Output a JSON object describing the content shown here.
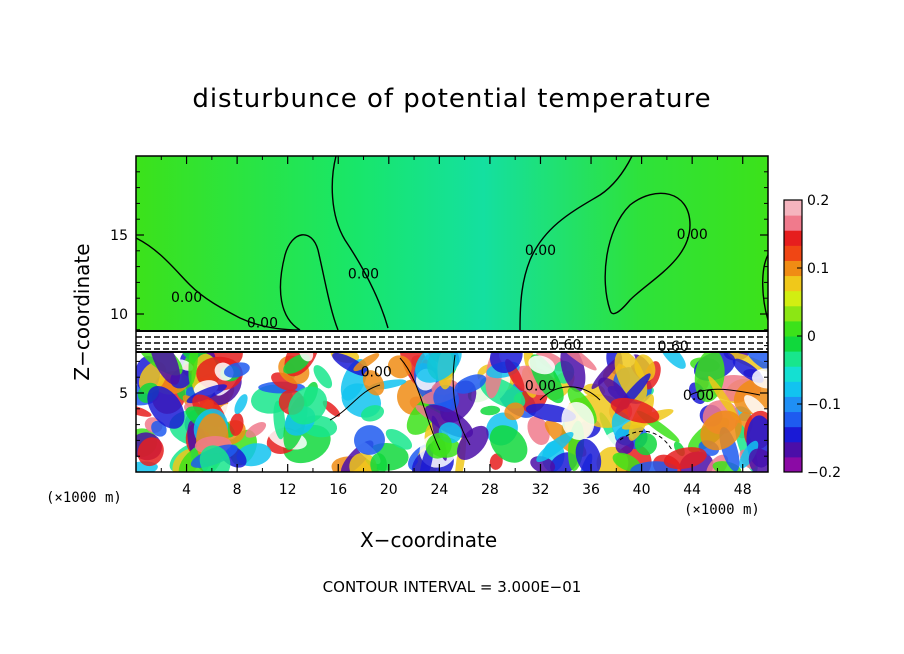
{
  "chart_data": {
    "type": "heatmap",
    "title": "disturbunce of potential temperature",
    "xlabel": "X−coordinate",
    "ylabel": "Z−coordinate",
    "x_unit": "(×1000 m)",
    "xlim": [
      0,
      50
    ],
    "ylim": [
      0,
      20
    ],
    "x_ticks": [
      4,
      8,
      12,
      16,
      20,
      24,
      28,
      32,
      36,
      40,
      44,
      48
    ],
    "x_tick_labels": [
      "4",
      "8",
      "12",
      "16",
      "20",
      "24",
      "28",
      "32",
      "36",
      "40",
      "44",
      "48"
    ],
    "y_ticks": [
      5,
      10,
      15
    ],
    "y_tick_labels": [
      "5",
      "10",
      "15"
    ],
    "colorbar": {
      "ticks": [
        0.2,
        0.1,
        0,
        -0.1,
        -0.2
      ],
      "tick_labels": [
        "0.2",
        "0.1",
        "0",
        "−0.1",
        "−0.2"
      ],
      "range": [
        -0.2,
        0.2
      ],
      "colors": [
        "#8b0aa5",
        "#4b0ea8",
        "#1a1ad6",
        "#1e5bf0",
        "#1f8ff5",
        "#12c3f0",
        "#14e0d2",
        "#18e68c",
        "#10d83c",
        "#3ce21a",
        "#8ce614",
        "#d2ee12",
        "#f0c81a",
        "#f08c14",
        "#f04614",
        "#e61e1e",
        "#f07a8c",
        "#f5b4be"
      ]
    },
    "contour_labels": [
      {
        "text": "0.00",
        "x": 4,
        "z": 11
      },
      {
        "text": "0.00",
        "x": 10,
        "z": 9.4
      },
      {
        "text": "0.00",
        "x": 18,
        "z": 12.5
      },
      {
        "text": "0.00",
        "x": 32,
        "z": 14
      },
      {
        "text": "0.00",
        "x": 44,
        "z": 15
      },
      {
        "text": "0.00",
        "x": 19,
        "z": 6.3
      },
      {
        "text": "0.00",
        "x": 32,
        "z": 5.4
      },
      {
        "text": "0.00",
        "x": 44.5,
        "z": 4.8
      },
      {
        "text": "0.60",
        "x": 34,
        "z": 8
      },
      {
        "text": "0.60",
        "x": 42.5,
        "z": 7.9
      }
    ],
    "footer": "CONTOUR INTERVAL = 3.000E−01"
  }
}
